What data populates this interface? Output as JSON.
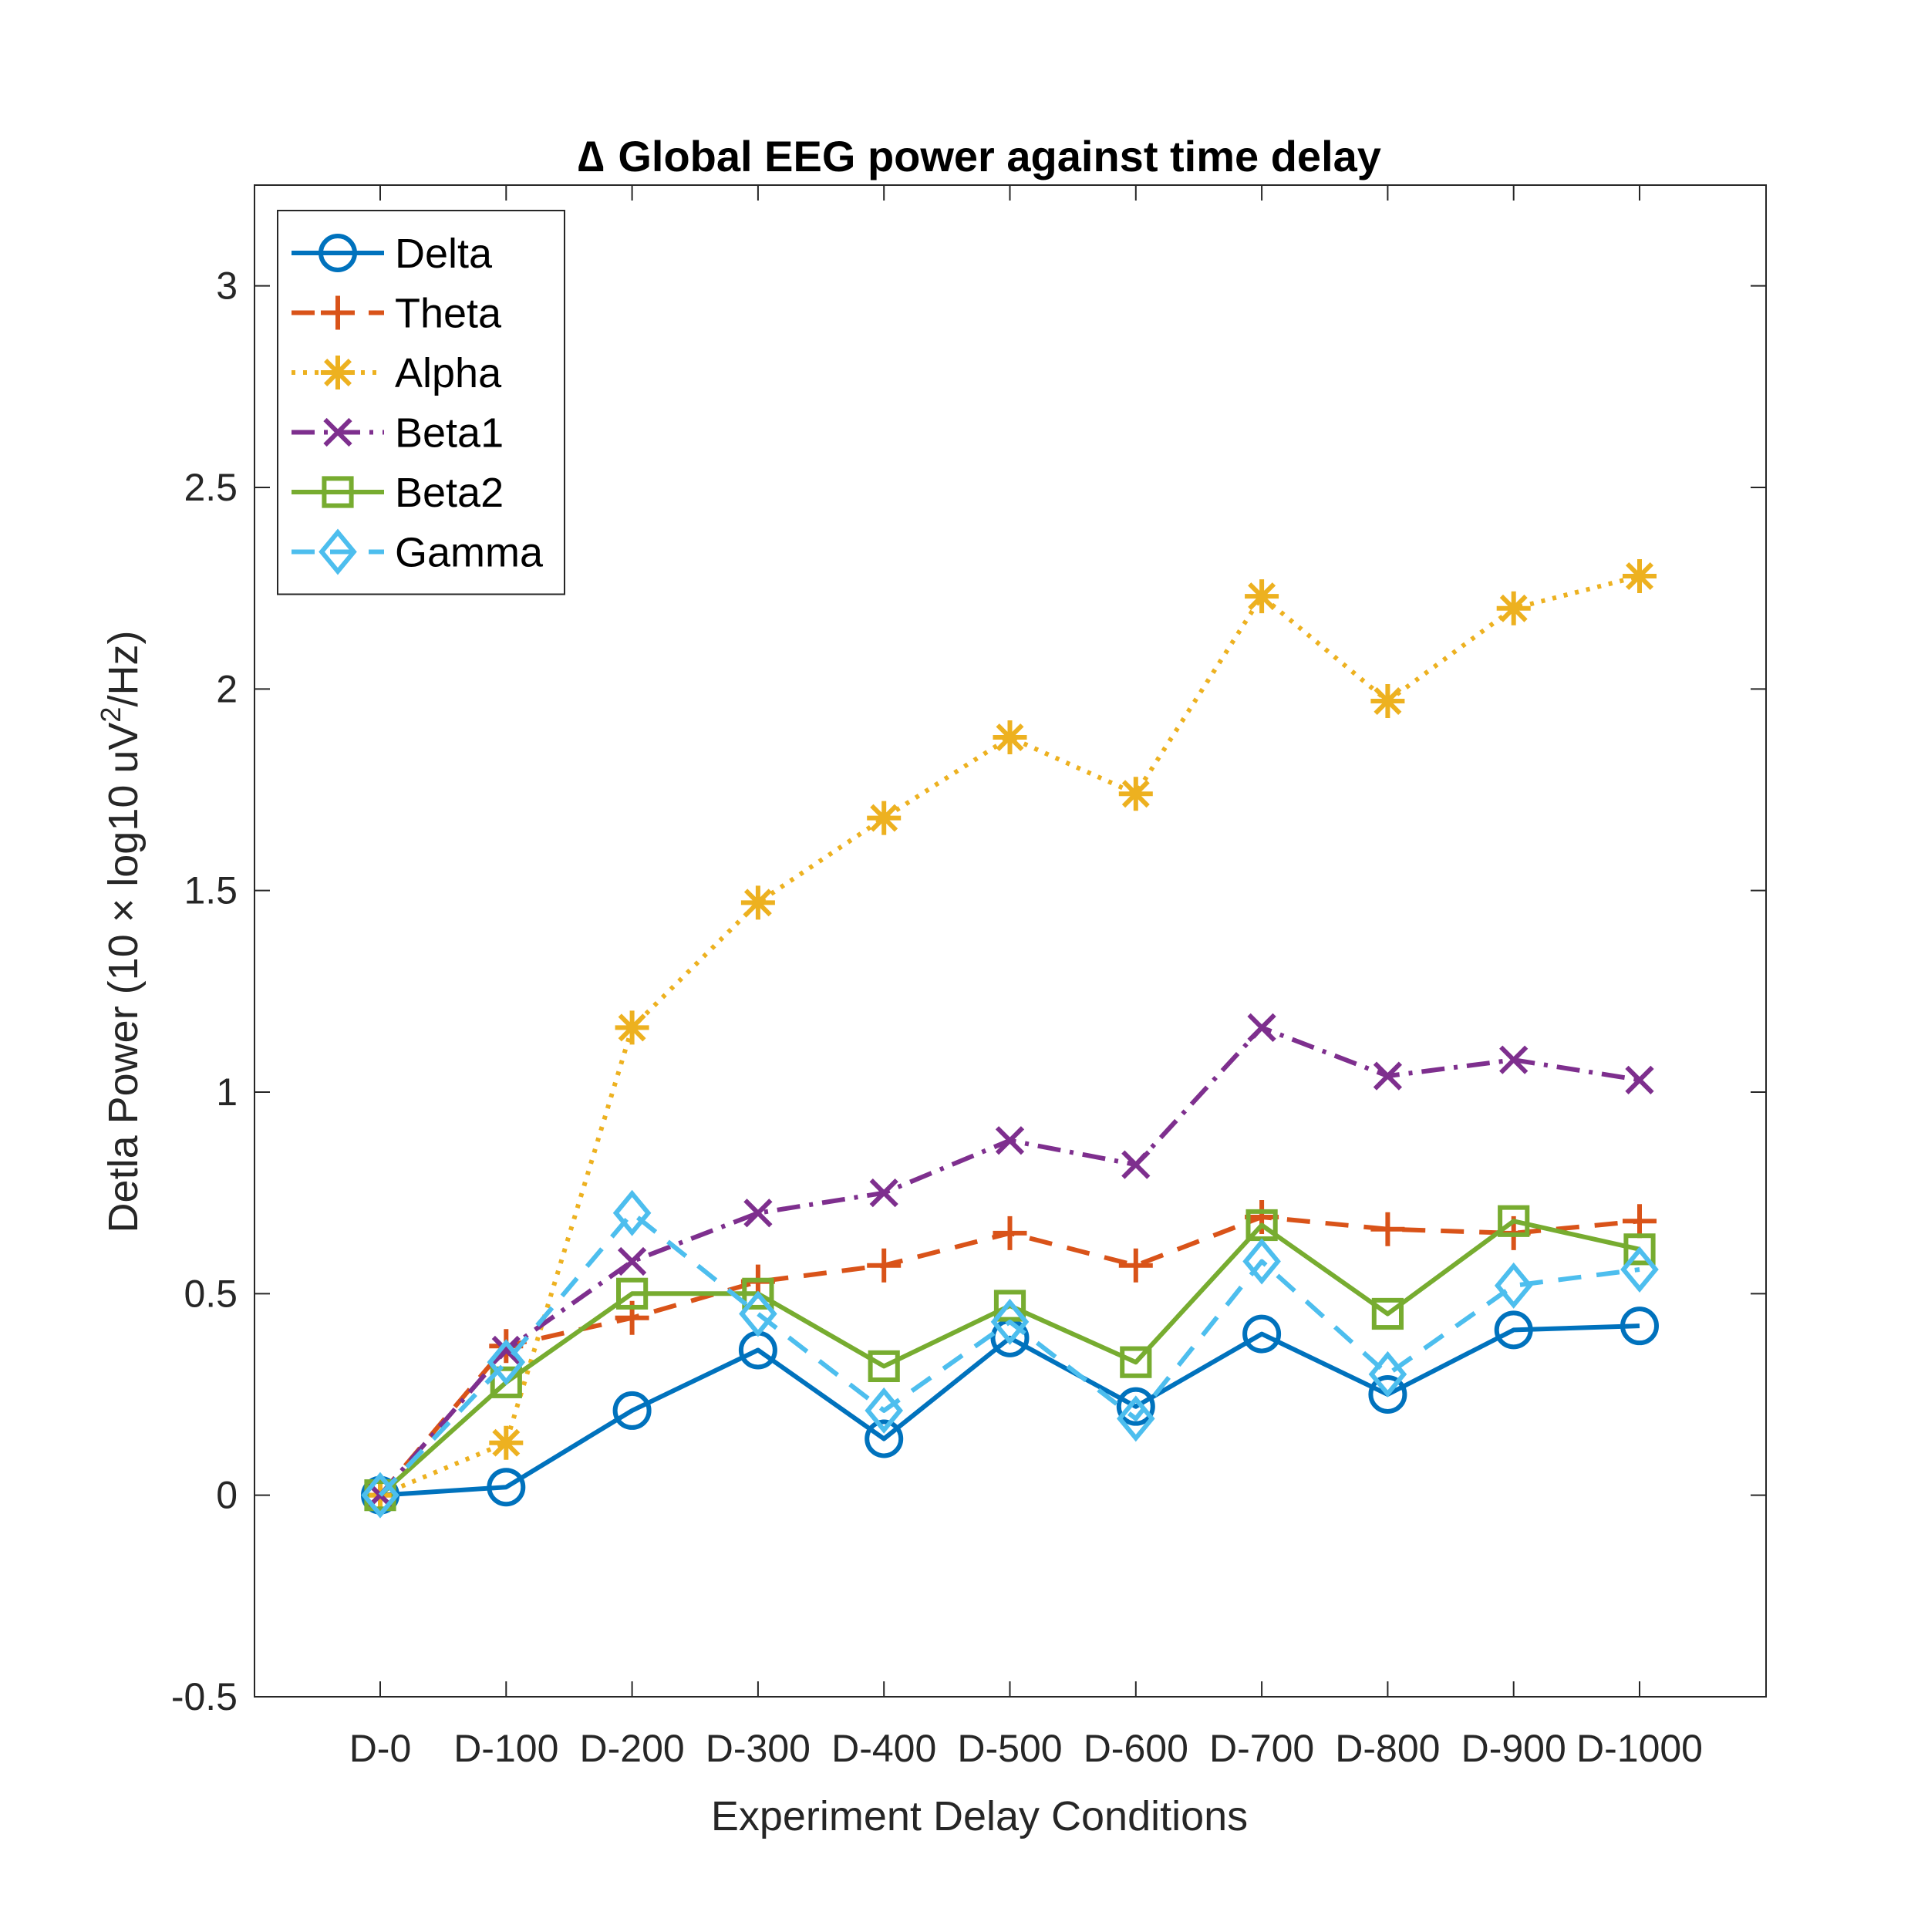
{
  "chart_data": {
    "type": "line",
    "title_symbol": "∆",
    "title": "Global EEG power against time delay",
    "xlabel": "Experiment Delay Conditions",
    "ylabel": {
      "prefix": "Detla Power (10 × log10 uV",
      "superscript": "2",
      "suffix": "/Hz)"
    },
    "categories": [
      "D-0",
      "D-100",
      "D-200",
      "D-300",
      "D-400",
      "D-500",
      "D-600",
      "D-700",
      "D-800",
      "D-900",
      "D-1000"
    ],
    "ylim": [
      -0.5,
      3.25
    ],
    "yticks": [
      -0.5,
      0,
      0.5,
      1,
      1.5,
      2,
      2.5,
      3
    ],
    "ytick_labels": [
      "-0.5",
      "0",
      "0.5",
      "1",
      "1.5",
      "2",
      "2.5",
      "3"
    ],
    "grid": false,
    "legend_position": "top-left",
    "series": [
      {
        "name": "Delta",
        "color": "#0072BD",
        "line": "solid",
        "marker": "circle",
        "values": [
          0.0,
          0.02,
          0.21,
          0.36,
          0.14,
          0.39,
          0.22,
          0.4,
          0.25,
          0.41,
          0.42
        ]
      },
      {
        "name": "Theta",
        "color": "#D95319",
        "line": "dashed",
        "marker": "plus",
        "values": [
          0.0,
          0.37,
          0.44,
          0.53,
          0.57,
          0.65,
          0.57,
          0.69,
          0.66,
          0.65,
          0.68
        ]
      },
      {
        "name": "Alpha",
        "color": "#EDB120",
        "line": "dotted",
        "marker": "asterisk",
        "values": [
          0.0,
          0.13,
          1.16,
          1.47,
          1.68,
          1.88,
          1.74,
          2.23,
          1.97,
          2.2,
          2.28
        ]
      },
      {
        "name": "Beta1",
        "color": "#7E2F8E",
        "line": "dashdot",
        "marker": "x",
        "values": [
          0.0,
          0.36,
          0.58,
          0.7,
          0.75,
          0.88,
          0.82,
          1.16,
          1.04,
          1.08,
          1.03
        ]
      },
      {
        "name": "Beta2",
        "color": "#77AC30",
        "line": "solid",
        "marker": "square",
        "values": [
          0.0,
          0.28,
          0.5,
          0.5,
          0.32,
          0.47,
          0.33,
          0.67,
          0.45,
          0.68,
          0.61
        ]
      },
      {
        "name": "Gamma",
        "color": "#4DBEEE",
        "line": "dashed",
        "marker": "diamond",
        "values": [
          0.0,
          0.33,
          0.7,
          0.45,
          0.21,
          0.43,
          0.19,
          0.58,
          0.3,
          0.52,
          0.56
        ]
      }
    ]
  }
}
